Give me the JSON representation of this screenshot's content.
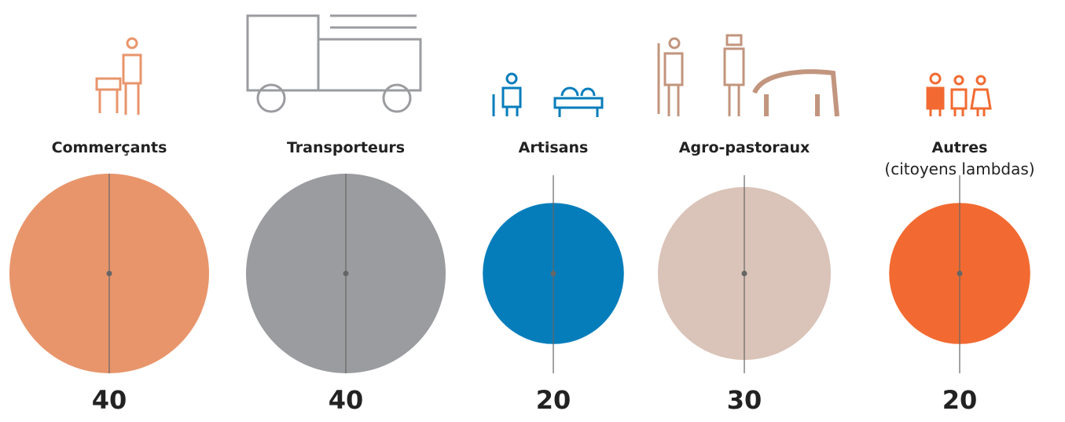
{
  "chart_data": {
    "type": "bubble",
    "categories": [
      "Commerçants",
      "Transporteurs",
      "Artisans",
      "Agro-pastoraux",
      "Autres"
    ],
    "sublabels": [
      null,
      null,
      null,
      null,
      "(citoyens lambdas)"
    ],
    "values": [
      40,
      40,
      20,
      30,
      20
    ],
    "colors": [
      "#e8956b",
      "#9b9c9f",
      "#067dbb",
      "#dac3b8",
      "#f26a31"
    ]
  }
}
